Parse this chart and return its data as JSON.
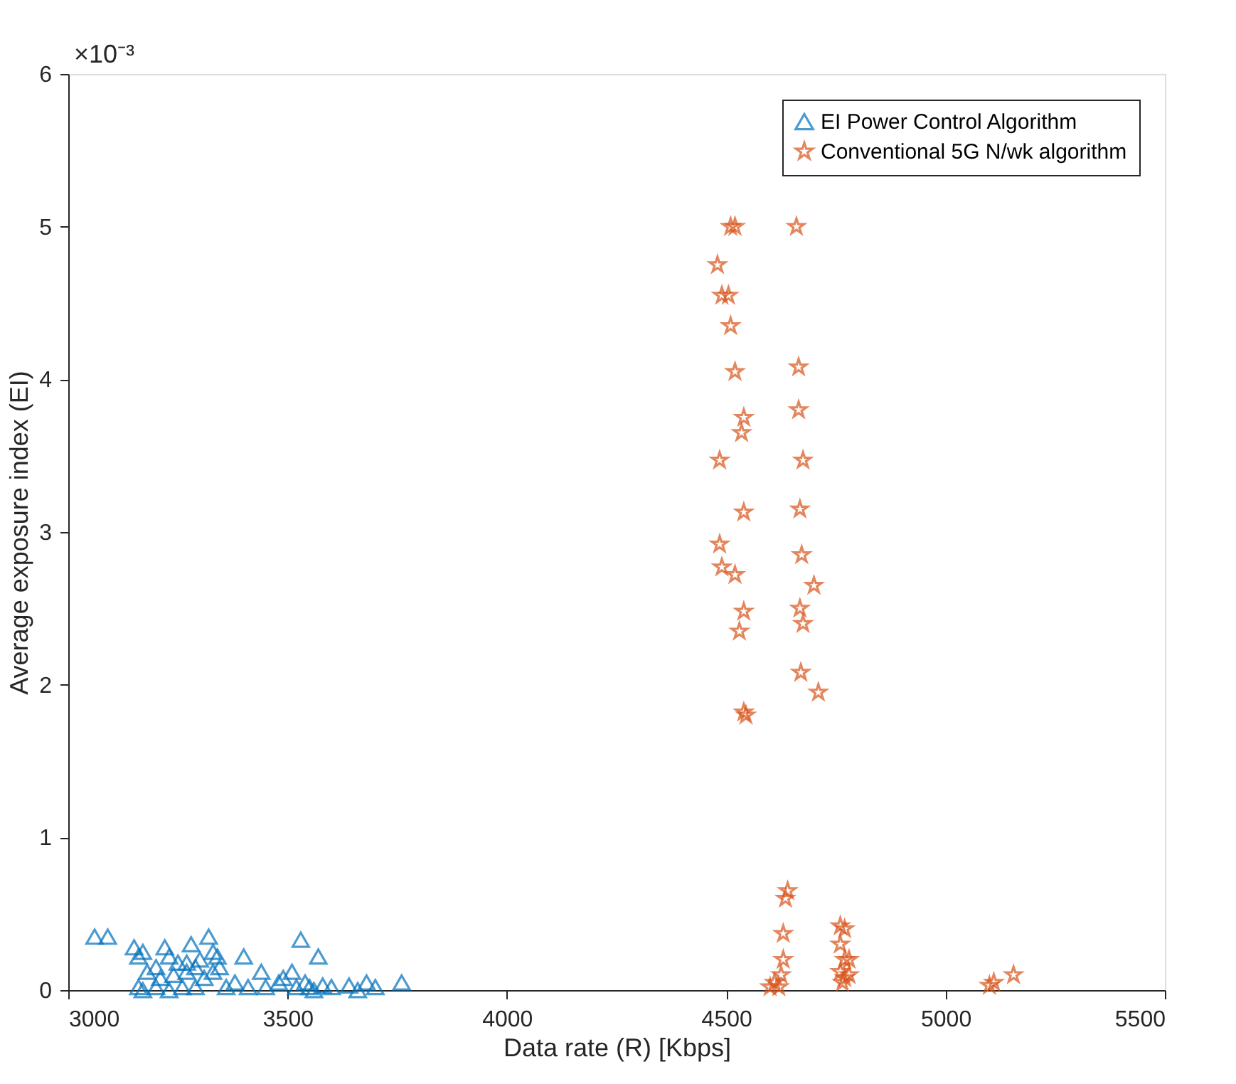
{
  "chart_data": {
    "type": "scatter",
    "xlabel": "Data rate (R) [Kbps]",
    "ylabel": "Average exposure index (EI)",
    "xlim": [
      3000,
      5500
    ],
    "xticks": [
      3000,
      3500,
      4000,
      4500,
      5000,
      5500
    ],
    "ylim": [
      0,
      6
    ],
    "yticks": [
      0,
      1,
      2,
      3,
      4,
      5,
      6
    ],
    "annotations": [
      "×10⁻³"
    ],
    "grid": false,
    "legend": "top right",
    "series": [
      {
        "name": "EI Power Control Algorithm",
        "color": "#0072bd",
        "marker": "triangle",
        "x": [
          3060,
          3090,
          3150,
          3170,
          3160,
          3220,
          3280,
          3320,
          3340,
          3400,
          3530,
          3570,
          3440,
          3490,
          3510,
          3180,
          3200,
          3210,
          3240,
          3250,
          3270,
          3290,
          3300,
          3330,
          3345,
          3310,
          3260,
          3160,
          3170,
          3200,
          3230,
          3290,
          3360,
          3380,
          3410,
          3450,
          3480,
          3520,
          3540,
          3550,
          3560,
          3580,
          3600,
          3640,
          3660,
          3680,
          3700,
          3760,
          3230,
          3270,
          3330
        ],
        "values": [
          0.35,
          0.35,
          0.28,
          0.25,
          0.22,
          0.28,
          0.3,
          0.35,
          0.22,
          0.22,
          0.33,
          0.22,
          0.12,
          0.08,
          0.12,
          0.12,
          0.15,
          0.08,
          0.1,
          0.18,
          0.12,
          0.15,
          0.2,
          0.12,
          0.15,
          0.08,
          0.02,
          0.02,
          0.0,
          0.02,
          0.0,
          0.02,
          0.02,
          0.05,
          0.02,
          0.02,
          0.05,
          0.02,
          0.05,
          0.02,
          0.0,
          0.03,
          0.02,
          0.03,
          0.0,
          0.05,
          0.02,
          0.05,
          0.22,
          0.18,
          0.25
        ]
      },
      {
        "name": "Conventional 5G N/wk algorithm",
        "color": "#d95319",
        "marker": "star",
        "x": [
          4510,
          4520,
          4480,
          4490,
          4505,
          4510,
          4520,
          4540,
          4535,
          4485,
          4540,
          4485,
          4490,
          4520,
          4540,
          4530,
          4540,
          4545,
          4660,
          4665,
          4665,
          4675,
          4668,
          4672,
          4700,
          4668,
          4675,
          4670,
          4710,
          4640,
          4635,
          4630,
          4630,
          4625,
          4610,
          4600,
          4620,
          4760,
          4770,
          4760,
          4770,
          4780,
          4760,
          4770,
          4780,
          4765,
          5100,
          5110,
          5155
        ],
        "values": [
          5.0,
          5.0,
          4.75,
          4.55,
          4.55,
          4.35,
          4.05,
          3.75,
          3.65,
          3.47,
          3.13,
          2.92,
          2.77,
          2.72,
          2.48,
          2.35,
          1.82,
          1.8,
          5.0,
          4.08,
          3.8,
          3.47,
          3.15,
          2.85,
          2.65,
          2.5,
          2.4,
          2.08,
          1.95,
          0.65,
          0.6,
          0.37,
          0.2,
          0.1,
          0.05,
          0.02,
          0.02,
          0.42,
          0.4,
          0.3,
          0.2,
          0.2,
          0.12,
          0.08,
          0.1,
          0.05,
          0.03,
          0.05,
          0.1
        ]
      }
    ]
  }
}
